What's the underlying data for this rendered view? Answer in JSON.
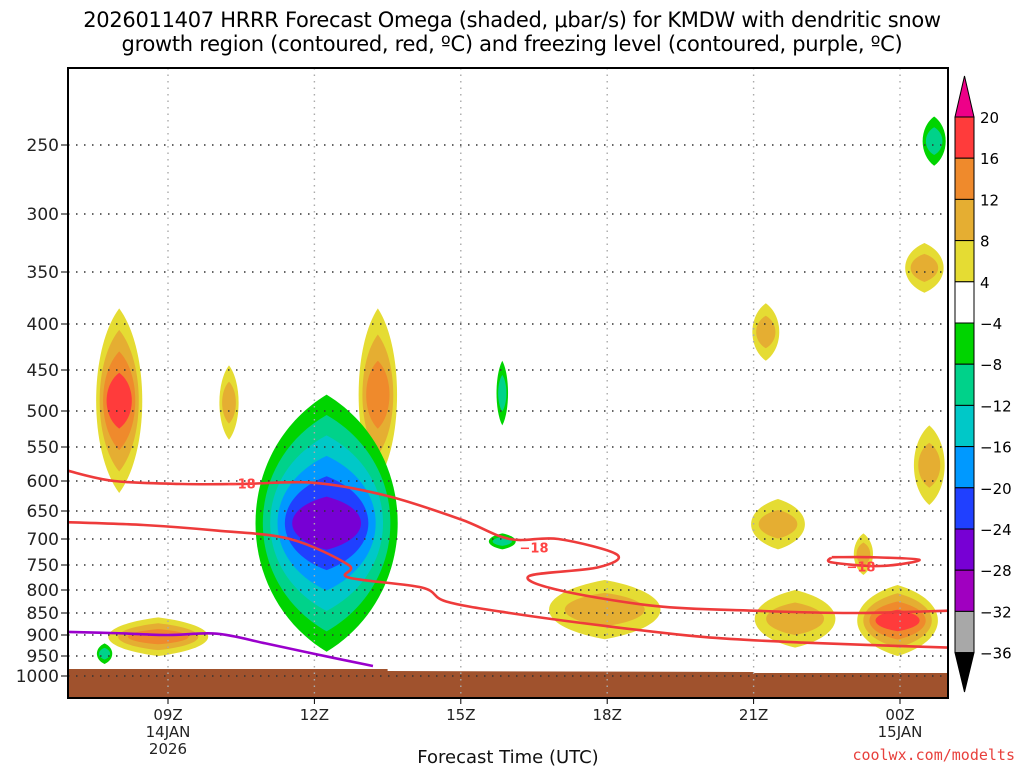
{
  "chart_data": {
    "type": "heatmap",
    "title_lines": [
      "2026011407 HRRR Forecast Omega (shaded, μbar/s) for KMDW with dendritic snow",
      "growth region (contoured, red, ºC) and freezing level (contoured, purple, ºC)"
    ],
    "xlabel": "Forecast Time (UTC)",
    "ylabel": "",
    "x_range_hours": [
      -2.05,
      16.0
    ],
    "x_ticks": [
      {
        "hour": 0,
        "lines": [
          "09Z",
          "14JAN",
          "2026"
        ]
      },
      {
        "hour": 3,
        "lines": [
          "12Z"
        ]
      },
      {
        "hour": 6,
        "lines": [
          "15Z"
        ]
      },
      {
        "hour": 9,
        "lines": [
          "18Z"
        ]
      },
      {
        "hour": 12,
        "lines": [
          "21Z"
        ]
      },
      {
        "hour": 15,
        "lines": [
          "00Z",
          "15JAN"
        ]
      }
    ],
    "y_axis": "pressure (mb), inverted",
    "y_range": [
      200,
      1050
    ],
    "y_ticks": [
      250,
      300,
      350,
      400,
      450,
      500,
      550,
      600,
      650,
      700,
      750,
      800,
      850,
      900,
      950,
      1000
    ],
    "grid": "dotted",
    "colorbar": {
      "units": "μbar/s",
      "levels": [
        20,
        16,
        12,
        8,
        4,
        -4,
        -8,
        -12,
        -16,
        -20,
        -24,
        -28,
        -32,
        -36
      ],
      "colors": [
        "#ff3b3b",
        "#ef8a2c",
        "#e5ae32",
        "#e5dc33",
        "#ffffff",
        "#00d400",
        "#00d28a",
        "#00c8c8",
        "#0099ff",
        "#2040ff",
        "#7700d4",
        "#a000c0",
        "#a8a8a8"
      ],
      "over_color": "#ee0088",
      "under_color": "#000000"
    },
    "ground_color": "#a0522d",
    "omega_regions": [
      {
        "name": "upward-motion-left-column",
        "level_range": [
          385,
          620
        ],
        "time_h": [
          -1.6,
          -0.4
        ],
        "max_class": 16
      },
      {
        "name": "upward-motion-left-lower",
        "level_range": [
          860,
          950
        ],
        "time_h": [
          -1.5,
          1.1
        ],
        "max_class": 12
      },
      {
        "name": "small-upward-1030z",
        "level_range": [
          445,
          540
        ],
        "time_h": [
          1.0,
          1.5
        ],
        "max_class": 8
      },
      {
        "name": "upward-motion-13z",
        "level_range": [
          385,
          600
        ],
        "time_h": [
          3.8,
          4.8
        ],
        "max_class": 12
      },
      {
        "name": "downward-motion-core-13z",
        "level_range": [
          480,
          940
        ],
        "time_h": [
          1.4,
          5.1
        ],
        "min_class": -24
      },
      {
        "name": "small-downward-0730z",
        "level_range": [
          920,
          970
        ],
        "time_h": [
          -1.5,
          -1.1
        ],
        "min_class": -8
      },
      {
        "name": "small-downward-16z",
        "level_range": [
          440,
          520
        ],
        "time_h": [
          6.7,
          7.0
        ],
        "min_class": -8
      },
      {
        "name": "small-downward-1615z",
        "level_range": [
          690,
          720
        ],
        "time_h": [
          6.5,
          7.2
        ],
        "min_class": -8
      },
      {
        "name": "upward-motion-17z",
        "level_range": [
          780,
          910
        ],
        "time_h": [
          7.5,
          10.4
        ],
        "max_class": 8
      },
      {
        "name": "upward-motion-2030z",
        "level_range": [
          630,
          720
        ],
        "time_h": [
          11.8,
          13.2
        ],
        "max_class": 8
      },
      {
        "name": "upward-motion-21z-upper",
        "level_range": [
          380,
          440
        ],
        "time_h": [
          11.9,
          12.6
        ],
        "max_class": 8
      },
      {
        "name": "upward-motion-2115z",
        "level_range": [
          800,
          930
        ],
        "time_h": [
          11.8,
          13.9
        ],
        "max_class": 8
      },
      {
        "name": "upward-motion-2330z",
        "level_range": [
          690,
          770
        ],
        "time_h": [
          14.0,
          14.5
        ],
        "max_class": 8
      },
      {
        "name": "upward-motion-00z-lower",
        "level_range": [
          790,
          950
        ],
        "time_h": [
          13.9,
          16.0
        ],
        "max_class": 16
      },
      {
        "name": "upward-motion-right-upper",
        "level_range": [
          325,
          370
        ],
        "time_h": [
          15.0,
          16.0
        ],
        "max_class": 8
      },
      {
        "name": "upward-motion-right-mid",
        "level_range": [
          520,
          640
        ],
        "time_h": [
          15.2,
          16.0
        ],
        "max_class": 8
      },
      {
        "name": "downward-motion-right-top",
        "level_range": [
          225,
          265
        ],
        "time_h": [
          15.4,
          16.0
        ],
        "min_class": -8
      }
    ],
    "contours": [
      {
        "name": "dgz-upper",
        "color": "#ee3b3b",
        "value": -18,
        "label": "-18",
        "points": [
          [
            -2.05,
            585
          ],
          [
            -1.1,
            600
          ],
          [
            0.3,
            605
          ],
          [
            1.5,
            605
          ],
          [
            3.0,
            603
          ],
          [
            4.5,
            625
          ],
          [
            6.0,
            665
          ],
          [
            7.0,
            700
          ],
          [
            8.0,
            700
          ],
          [
            9.2,
            730
          ],
          [
            8.8,
            755
          ],
          [
            7.4,
            772
          ],
          [
            8.0,
            800
          ],
          [
            10.0,
            835
          ],
          [
            12.0,
            845
          ],
          [
            14.0,
            850
          ],
          [
            16.0,
            845
          ]
        ]
      },
      {
        "name": "dgz-lower",
        "color": "#ee3b3b",
        "value": null,
        "label": "",
        "points": [
          [
            -2.05,
            670
          ],
          [
            -0.5,
            675
          ],
          [
            1.0,
            685
          ],
          [
            2.5,
            700
          ],
          [
            3.7,
            750
          ],
          [
            3.7,
            775
          ],
          [
            5.2,
            795
          ],
          [
            5.7,
            825
          ],
          [
            7.0,
            850
          ],
          [
            9.0,
            880
          ],
          [
            11.0,
            905
          ],
          [
            13.0,
            918
          ],
          [
            16.0,
            930
          ]
        ]
      },
      {
        "name": "dgz-loop-2330z",
        "color": "#ee3b3b",
        "value": -18,
        "label": "-18",
        "points": [
          [
            13.6,
            735
          ],
          [
            14.4,
            735
          ],
          [
            15.4,
            740
          ],
          [
            14.6,
            752
          ],
          [
            13.6,
            745
          ],
          [
            13.6,
            735
          ]
        ]
      },
      {
        "name": "freezing-level",
        "color": "#9a00cc",
        "value": 0,
        "label": "",
        "points": [
          [
            -2.05,
            893
          ],
          [
            -1.0,
            896
          ],
          [
            0.0,
            900
          ],
          [
            1.0,
            897
          ],
          [
            2.0,
            920
          ],
          [
            3.0,
            945
          ],
          [
            4.2,
            975
          ]
        ]
      }
    ],
    "contour_labels": [
      {
        "text": "-18",
        "time_h": 1.5,
        "level": 604
      },
      {
        "text": "-18",
        "time_h": 7.5,
        "level": 716
      },
      {
        "text": "-18",
        "time_h": 14.2,
        "level": 753
      }
    ]
  },
  "credit": "coolwx.com/modelts"
}
